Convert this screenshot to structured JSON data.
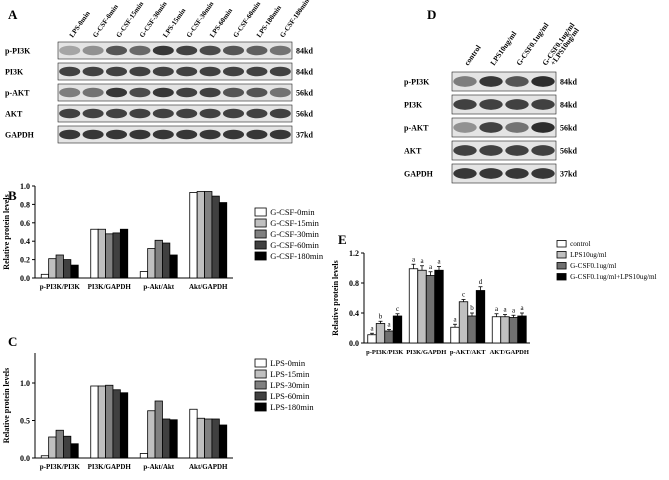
{
  "panels": {
    "A": {
      "letter": "A",
      "lanes": [
        "LPS-0min",
        "G-CSF-0min",
        "G-CSF-15min",
        "G-CSF-30min",
        "LPS-15min",
        "G-CSF-30min",
        "LPS-60min",
        "G-CSF-60min",
        "LPS-180min",
        "G-CSF-180min"
      ],
      "rows": [
        {
          "name": "p-PI3K",
          "kd": "84kd",
          "intensity": [
            0.35,
            0.45,
            0.75,
            0.65,
            0.9,
            0.85,
            0.8,
            0.75,
            0.7,
            0.6
          ]
        },
        {
          "name": "PI3K",
          "kd": "84kd",
          "intensity": [
            0.85,
            0.85,
            0.85,
            0.85,
            0.85,
            0.85,
            0.85,
            0.85,
            0.85,
            0.85
          ]
        },
        {
          "name": "p-AKT",
          "kd": "56kd",
          "intensity": [
            0.55,
            0.6,
            0.9,
            0.8,
            0.9,
            0.85,
            0.85,
            0.75,
            0.75,
            0.6
          ]
        },
        {
          "name": "AKT",
          "kd": "56kd",
          "intensity": [
            0.85,
            0.85,
            0.85,
            0.85,
            0.85,
            0.85,
            0.85,
            0.85,
            0.85,
            0.85
          ]
        },
        {
          "name": "GAPDH",
          "kd": "37kd",
          "intensity": [
            0.9,
            0.9,
            0.9,
            0.9,
            0.9,
            0.9,
            0.9,
            0.9,
            0.9,
            0.9
          ]
        }
      ]
    },
    "D": {
      "letter": "D",
      "lanes": [
        "control",
        "LPS10ug/ml",
        "G-CSF0.1ug/ml",
        "G-CSF0.1ug/ml +LPS10ug/ml"
      ],
      "rows": [
        {
          "name": "p-PI3K",
          "kd": "84kd",
          "intensity": [
            0.55,
            0.9,
            0.75,
            0.95
          ]
        },
        {
          "name": "PI3K",
          "kd": "84kd",
          "intensity": [
            0.85,
            0.85,
            0.85,
            0.85
          ]
        },
        {
          "name": "p-AKT",
          "kd": "56kd",
          "intensity": [
            0.45,
            0.85,
            0.6,
            0.95
          ]
        },
        {
          "name": "AKT",
          "kd": "56kd",
          "intensity": [
            0.85,
            0.85,
            0.85,
            0.85
          ]
        },
        {
          "name": "GAPDH",
          "kd": "37kd",
          "intensity": [
            0.9,
            0.9,
            0.9,
            0.9
          ]
        }
      ]
    }
  },
  "chart_data": [
    {
      "panel": "B",
      "type": "bar",
      "ylabel": "Relative protein levels",
      "ylim": [
        0,
        1.0
      ],
      "yticks": [
        "0.0",
        "0.2",
        "0.4",
        "0.6",
        "0.8",
        "1.0"
      ],
      "categories": [
        "p-PI3K/PI3K",
        "PI3K/GAPDH",
        "p-Akt/Akt",
        "Akt/GAPDH"
      ],
      "legend_position": "right",
      "series": [
        {
          "name": "G-CSF-0min",
          "color": "#ffffff",
          "values": [
            0.04,
            0.53,
            0.07,
            0.93
          ]
        },
        {
          "name": "G-CSF-15min",
          "color": "#c0c0c0",
          "values": [
            0.21,
            0.53,
            0.32,
            0.94
          ]
        },
        {
          "name": "G-CSF-30min",
          "color": "#808080",
          "values": [
            0.25,
            0.48,
            0.41,
            0.94
          ]
        },
        {
          "name": "G-CSF-60min",
          "color": "#404040",
          "values": [
            0.2,
            0.49,
            0.38,
            0.89
          ]
        },
        {
          "name": "G-CSF-180min",
          "color": "#000000",
          "values": [
            0.14,
            0.53,
            0.25,
            0.82
          ]
        }
      ]
    },
    {
      "panel": "C",
      "type": "bar",
      "ylabel": "Relative protein levels",
      "ylim": [
        0,
        1.4
      ],
      "yticks": [
        "0.0",
        "0.5",
        "1.0"
      ],
      "categories": [
        "p-PI3K/PI3K",
        "PI3K/GAPDH",
        "p-Akt/Akt",
        "Akt/GAPDH"
      ],
      "legend_position": "right",
      "series": [
        {
          "name": "LPS-0min",
          "color": "#ffffff",
          "values": [
            0.03,
            0.96,
            0.06,
            0.65
          ]
        },
        {
          "name": "LPS-15min",
          "color": "#c0c0c0",
          "values": [
            0.28,
            0.96,
            0.63,
            0.53
          ]
        },
        {
          "name": "LPS-30min",
          "color": "#808080",
          "values": [
            0.37,
            0.97,
            0.76,
            0.52
          ]
        },
        {
          "name": "LPS-60min",
          "color": "#404040",
          "values": [
            0.29,
            0.91,
            0.52,
            0.52
          ]
        },
        {
          "name": "LPS-180min",
          "color": "#000000",
          "values": [
            0.19,
            0.87,
            0.51,
            0.44
          ]
        }
      ]
    },
    {
      "panel": "E",
      "type": "bar",
      "ylabel": "Relative protein levels",
      "ylim": [
        0,
        1.2
      ],
      "yticks": [
        "0.0",
        "0.4",
        "0.8",
        "1.2"
      ],
      "categories": [
        "p-PI3K/PI3K",
        "PI3K/GAPDH",
        "p-AKT/AKT",
        "AKT/GAPDH"
      ],
      "legend_position": "right",
      "series": [
        {
          "name": "control",
          "color": "#ffffff",
          "values": [
            0.11,
            0.99,
            0.21,
            0.35
          ],
          "errors": [
            0.02,
            0.06,
            0.04,
            0.04
          ],
          "sig": [
            "a",
            "a",
            "a",
            "a"
          ]
        },
        {
          "name": "LPS10ug/ml",
          "color": "#c0c0c0",
          "values": [
            0.26,
            0.97,
            0.55,
            0.35
          ],
          "errors": [
            0.03,
            0.06,
            0.03,
            0.03
          ],
          "sig": [
            "b",
            "a",
            "c",
            "a"
          ]
        },
        {
          "name": "G-CSF0.1ug/ml",
          "color": "#707070",
          "values": [
            0.16,
            0.9,
            0.36,
            0.34
          ],
          "errors": [
            0.02,
            0.05,
            0.04,
            0.03
          ],
          "sig": [
            "a",
            "a",
            "b",
            "a"
          ]
        },
        {
          "name": "G-CSF0.1ug/ml+LPS10ug/ml",
          "color": "#000000",
          "values": [
            0.36,
            0.97,
            0.7,
            0.36
          ],
          "errors": [
            0.03,
            0.05,
            0.05,
            0.04
          ],
          "sig": [
            "c",
            "a",
            "d",
            "a"
          ]
        }
      ]
    }
  ]
}
